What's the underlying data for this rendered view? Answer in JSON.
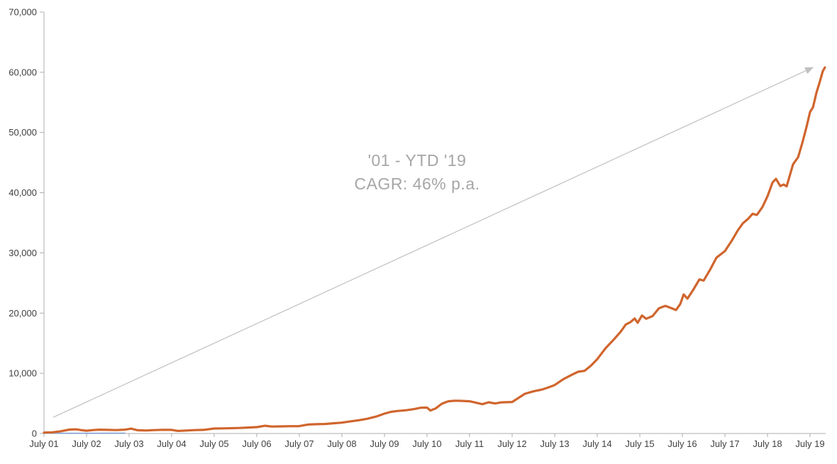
{
  "chart_data": {
    "type": "line",
    "title": "",
    "annotation": {
      "line1": "'01 - YTD '19",
      "line2": "CAGR: 46% p.a."
    },
    "x_tick_labels": [
      "July 01",
      "July 02",
      "July 03",
      "July 04",
      "July 05",
      "July 06",
      "July 07",
      "July 08",
      "July 09",
      "July 10",
      "July 11",
      "July 12",
      "July 13",
      "July 14",
      "July 15",
      "July 16",
      "July 17",
      "July 18",
      "July 19"
    ],
    "y_ticks": [
      0,
      10000,
      20000,
      30000,
      40000,
      50000,
      60000,
      70000
    ],
    "y_tick_labels": [
      "0",
      "10,000",
      "20,000",
      "30,000",
      "40,000",
      "50,000",
      "60,000",
      "70,000"
    ],
    "ylim": [
      0,
      70000
    ],
    "xlim_years": [
      0,
      18.35
    ],
    "grid": false,
    "legend": "none",
    "axis_color": "#adadad",
    "label_color": "#3f3f3f",
    "annotation_color": "#a6a6a6",
    "series": [
      {
        "name": "benchmark-series",
        "color": "#7f9dd1",
        "width": 1.6,
        "points": [
          [
            0,
            30
          ],
          [
            0.5,
            40
          ],
          [
            1.0,
            40
          ],
          [
            1.5,
            45
          ],
          [
            1.9,
            50
          ]
        ]
      },
      {
        "name": "cumulative-value-series",
        "color": "#d0652d",
        "width": 3.2,
        "points": [
          [
            0,
            150
          ],
          [
            0.2,
            200
          ],
          [
            0.4,
            380
          ],
          [
            0.6,
            650
          ],
          [
            0.75,
            700
          ],
          [
            0.9,
            540
          ],
          [
            1.0,
            460
          ],
          [
            1.15,
            560
          ],
          [
            1.3,
            640
          ],
          [
            1.5,
            600
          ],
          [
            1.7,
            570
          ],
          [
            1.9,
            640
          ],
          [
            2.05,
            800
          ],
          [
            2.2,
            540
          ],
          [
            2.4,
            490
          ],
          [
            2.6,
            560
          ],
          [
            2.8,
            610
          ],
          [
            3.0,
            600
          ],
          [
            3.15,
            420
          ],
          [
            3.35,
            490
          ],
          [
            3.55,
            560
          ],
          [
            3.75,
            600
          ],
          [
            4.0,
            820
          ],
          [
            4.3,
            860
          ],
          [
            4.6,
            920
          ],
          [
            4.8,
            990
          ],
          [
            5.0,
            1060
          ],
          [
            5.2,
            1290
          ],
          [
            5.35,
            1150
          ],
          [
            5.55,
            1180
          ],
          [
            5.8,
            1210
          ],
          [
            6.0,
            1230
          ],
          [
            6.2,
            1480
          ],
          [
            6.4,
            1540
          ],
          [
            6.6,
            1580
          ],
          [
            6.8,
            1700
          ],
          [
            7.0,
            1800
          ],
          [
            7.2,
            2010
          ],
          [
            7.4,
            2200
          ],
          [
            7.6,
            2450
          ],
          [
            7.8,
            2800
          ],
          [
            8.0,
            3300
          ],
          [
            8.15,
            3600
          ],
          [
            8.3,
            3730
          ],
          [
            8.5,
            3850
          ],
          [
            8.7,
            4050
          ],
          [
            8.85,
            4280
          ],
          [
            9.0,
            4300
          ],
          [
            9.08,
            3820
          ],
          [
            9.2,
            4150
          ],
          [
            9.35,
            4950
          ],
          [
            9.5,
            5350
          ],
          [
            9.65,
            5450
          ],
          [
            9.8,
            5420
          ],
          [
            10.0,
            5350
          ],
          [
            10.15,
            5120
          ],
          [
            10.3,
            4870
          ],
          [
            10.45,
            5180
          ],
          [
            10.6,
            4980
          ],
          [
            10.75,
            5170
          ],
          [
            11.0,
            5230
          ],
          [
            11.15,
            5900
          ],
          [
            11.3,
            6600
          ],
          [
            11.5,
            7000
          ],
          [
            11.7,
            7300
          ],
          [
            11.85,
            7650
          ],
          [
            12.0,
            8050
          ],
          [
            12.2,
            9000
          ],
          [
            12.4,
            9750
          ],
          [
            12.55,
            10250
          ],
          [
            12.7,
            10400
          ],
          [
            12.85,
            11250
          ],
          [
            13.0,
            12350
          ],
          [
            13.2,
            14200
          ],
          [
            13.4,
            15700
          ],
          [
            13.55,
            16900
          ],
          [
            13.67,
            18100
          ],
          [
            13.78,
            18500
          ],
          [
            13.88,
            19100
          ],
          [
            13.95,
            18400
          ],
          [
            14.05,
            19600
          ],
          [
            14.15,
            19050
          ],
          [
            14.3,
            19500
          ],
          [
            14.45,
            20800
          ],
          [
            14.6,
            21200
          ],
          [
            14.75,
            20800
          ],
          [
            14.85,
            20500
          ],
          [
            14.95,
            21500
          ],
          [
            15.03,
            23100
          ],
          [
            15.12,
            22400
          ],
          [
            15.25,
            23800
          ],
          [
            15.4,
            25600
          ],
          [
            15.5,
            25400
          ],
          [
            15.65,
            27200
          ],
          [
            15.8,
            29200
          ],
          [
            16.0,
            30300
          ],
          [
            16.15,
            31900
          ],
          [
            16.3,
            33700
          ],
          [
            16.42,
            34900
          ],
          [
            16.55,
            35700
          ],
          [
            16.65,
            36500
          ],
          [
            16.75,
            36300
          ],
          [
            16.88,
            37600
          ],
          [
            17.0,
            39400
          ],
          [
            17.12,
            41700
          ],
          [
            17.2,
            42300
          ],
          [
            17.3,
            41100
          ],
          [
            17.38,
            41350
          ],
          [
            17.45,
            41050
          ],
          [
            17.6,
            44700
          ],
          [
            17.72,
            45900
          ],
          [
            17.82,
            48300
          ],
          [
            17.92,
            51000
          ],
          [
            18.0,
            53400
          ],
          [
            18.07,
            54200
          ],
          [
            18.15,
            56600
          ],
          [
            18.22,
            58200
          ],
          [
            18.3,
            60200
          ],
          [
            18.35,
            60800
          ]
        ]
      }
    ],
    "trend_arrow": {
      "from": [
        0.22,
        2700
      ],
      "to": [
        18.07,
        60800
      ],
      "color": "#c0c0c0"
    }
  }
}
